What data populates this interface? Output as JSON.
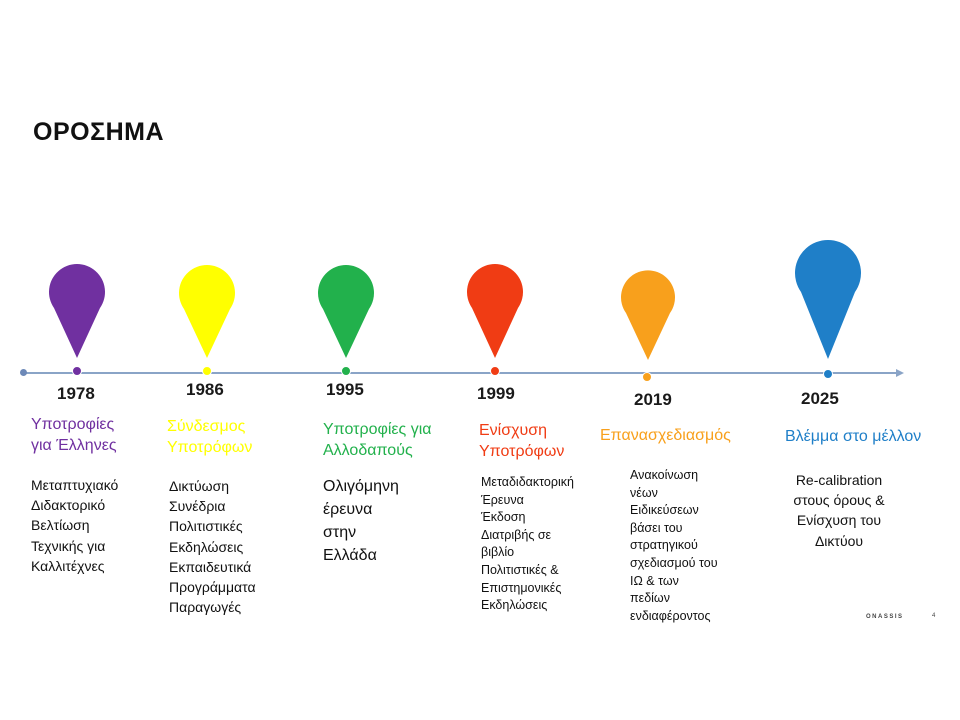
{
  "title": "ΟΡΟΣΗΜΑ",
  "milestones": [
    {
      "year": "1978",
      "heading": [
        "Υποτροφίες",
        "για Έλληνες"
      ],
      "color": "#7030a0",
      "description": [
        "Μεταπτυχιακό",
        "Διδακτορικό",
        "Βελτίωση",
        "Τεχνικής για",
        "Καλλιτέχνες"
      ]
    },
    {
      "year": "1986",
      "heading": [
        "Σύνδεσμος",
        "Υποτρόφων"
      ],
      "color": "#ffff00",
      "description": [
        "Δικτύωση",
        "Συνέδρια",
        "Πολιτιστικές",
        "Εκδηλώσεις",
        "Εκπαιδευτικά",
        "Προγράμματα",
        "Παραγωγές"
      ]
    },
    {
      "year": "1995",
      "heading": [
        "Υποτροφίες για",
        "Αλλοδαπούς"
      ],
      "color": "#22b14c",
      "description": [
        "Ολιγόμηνη",
        "έρευνα",
        "στην",
        "Ελλάδα"
      ]
    },
    {
      "year": "1999",
      "heading": [
        "Ενίσχυση",
        "Υποτρόφων"
      ],
      "color": "#f03c14",
      "description": [
        "Μεταδιδακτορική",
        "Έρευνα",
        "Έκδοση",
        "Διατριβής σε",
        "βιβλίο",
        "Πολιτιστικές &",
        "Επιστημονικές",
        "Εκδηλώσεις"
      ]
    },
    {
      "year": "2019",
      "heading": [
        "Επανασχεδιασμός"
      ],
      "color": "#f8a01c",
      "description": [
        "Ανακοίνωση",
        "νέων",
        "Ειδικεύσεων",
        "βάσει του",
        "στρατηγικού",
        "σχεδιασμού του",
        "ΙΩ & των",
        "πεδίων",
        "ενδιαφέροντος"
      ]
    },
    {
      "year": "2025",
      "heading": [
        "Βλέμμα στο μέλλον"
      ],
      "color": "#1f7fc8",
      "description": [
        "Re-calibration",
        "στους όρους &",
        "Ενίσχυση του",
        "Δικτύου"
      ]
    }
  ],
  "footer": {
    "brand": "ONASSIS",
    "page_number": "4"
  }
}
